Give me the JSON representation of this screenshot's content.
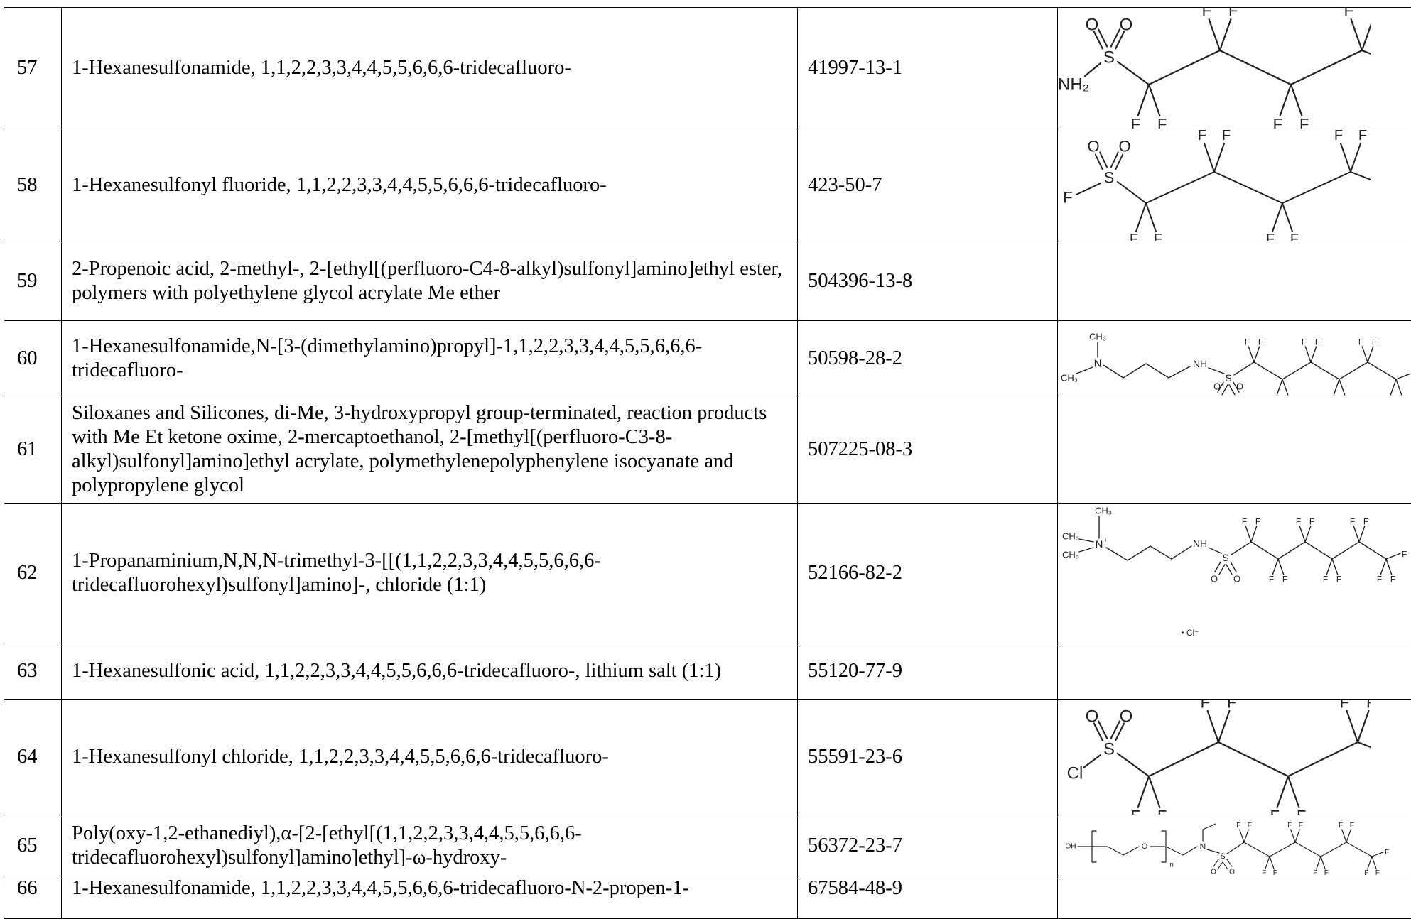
{
  "rows": [
    {
      "no": "57",
      "name": "1-Hexanesulfonamide, 1,1,2,2,3,3,4,4,5,5,6,6,6-tridecafluoro-",
      "cas": "41997-13-1",
      "structure": "sulfonamide"
    },
    {
      "no": "58",
      "name": "1-Hexanesulfonyl fluoride, 1,1,2,2,3,3,4,4,5,5,6,6,6-tridecafluoro-",
      "cas": "423-50-7",
      "structure": "sulfonyl-fluoride"
    },
    {
      "no": "59",
      "name": "2-Propenoic acid, 2-methyl-, 2-[ethyl[(perfluoro-C4-8-alkyl)sulfonyl]amino]ethyl ester, polymers with polyethylene glycol acrylate Me ether",
      "cas": "504396-13-8",
      "structure": ""
    },
    {
      "no": "60",
      "name": "1-Hexanesulfonamide,N-[3-(dimethylamino)propyl]-1,1,2,2,3,3,4,4,5,5,6,6,6-tridecafluoro-",
      "cas": "50598-28-2",
      "structure": "dimethylaminopropyl-sulfonamide"
    },
    {
      "no": "61",
      "name": "Siloxanes and Silicones, di-Me, 3-hydroxypropyl group-terminated, reaction products with Me Et ketone oxime, 2-mercaptoethanol, 2-[methyl[(perfluoro-C3-8-alkyl)sulfonyl]amino]ethyl acrylate, polymethylenepolyphenylene isocyanate and polypropylene glycol",
      "cas": "507225-08-3",
      "structure": ""
    },
    {
      "no": "62",
      "name": "1-Propanaminium,N,N,N-trimethyl-3-[[(1,1,2,2,3,3,4,4,5,5,6,6,6-tridecafluorohexyl)sulfonyl]amino]-, chloride (1:1)",
      "cas": "52166-82-2",
      "structure": "trimethylammonium-chloride"
    },
    {
      "no": "63",
      "name": "1-Hexanesulfonic acid, 1,1,2,2,3,3,4,4,5,5,6,6,6-tridecafluoro-, lithium salt (1:1)",
      "cas": "55120-77-9",
      "structure": ""
    },
    {
      "no": "64",
      "name": "1-Hexanesulfonyl chloride, 1,1,2,2,3,3,4,4,5,5,6,6,6-tridecafluoro-",
      "cas": "55591-23-6",
      "structure": "sulfonyl-chloride"
    },
    {
      "no": "65",
      "name": "Poly(oxy-1,2-ethanediyl),α-[2-[ethyl[(1,1,2,2,3,3,4,4,5,5,6,6,6-tridecafluorohexyl)sulfonyl]amino]ethyl]-ω-hydroxy-",
      "cas": "56372-23-7",
      "structure": "peg-ethyl-sulfonamide"
    },
    {
      "no": "66",
      "name": "1-Hexanesulfonamide, 1,1,2,2,3,3,4,4,5,5,6,6,6-tridecafluoro-N-2-propen-1-",
      "cas": "67584-48-9",
      "structure": ""
    }
  ],
  "structure_labels": {
    "oxygen": "O",
    "fluorine": "F",
    "sulfur": "S",
    "nitrogen": "N",
    "amine": "NH",
    "amine_2": "NH₂",
    "chlorine": "Cl",
    "methyl": "CH₃",
    "plus": "+",
    "hydroxyl": "OH",
    "subscript_n": "n",
    "counter_ion": "• Cl⁻"
  }
}
